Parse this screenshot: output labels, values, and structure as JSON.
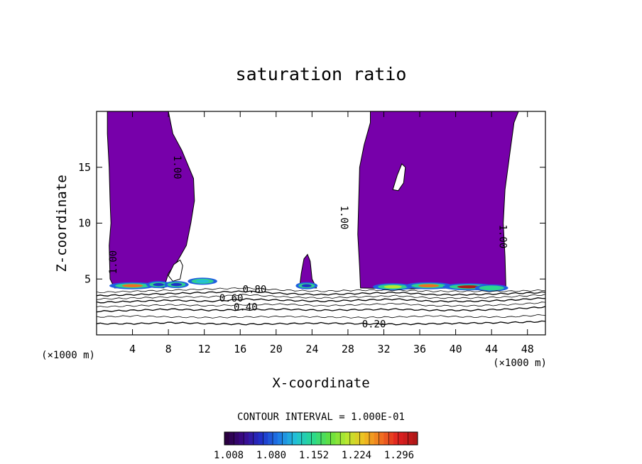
{
  "chart_data": {
    "type": "contour",
    "title": "saturation ratio",
    "xlabel": "X-coordinate",
    "ylabel": "Z-coordinate",
    "x_unit": "(×1000 m)",
    "z_unit": "(×1000 m)",
    "xlim": [
      0,
      50
    ],
    "ylim": [
      0,
      20
    ],
    "x_ticks": [
      4,
      8,
      12,
      16,
      20,
      24,
      28,
      32,
      36,
      40,
      44,
      48
    ],
    "y_ticks": [
      5,
      10,
      15
    ],
    "contour_labels": [
      {
        "text": "1.00",
        "x": 9.0,
        "z": 15.0
      },
      {
        "text": "1.00",
        "x": 1.8,
        "z": 6.5
      },
      {
        "text": "1.00",
        "x": 27.6,
        "z": 10.5
      },
      {
        "text": "1.00",
        "x": 45.3,
        "z": 8.8
      },
      {
        "text": "0.80",
        "x": 17.6,
        "z": 4.1
      },
      {
        "text": "0.60",
        "x": 15.0,
        "z": 3.3
      },
      {
        "text": "0.40",
        "x": 16.6,
        "z": 2.5
      },
      {
        "text": "0.20",
        "x": 30.9,
        "z": 1.0
      }
    ],
    "isolines": [
      {
        "value": 0.2,
        "z": [
          1.0,
          1.0,
          1.1,
          1.0,
          0.95,
          1.0,
          1.05,
          1.0,
          0.95,
          1.0,
          1.05,
          1.1,
          1.2
        ]
      },
      {
        "value": 0.3,
        "z": [
          1.6,
          1.7,
          1.6,
          1.55,
          1.6,
          1.65,
          1.6,
          1.55,
          1.6,
          1.7,
          1.6,
          1.6,
          1.8
        ]
      },
      {
        "value": 0.4,
        "z": [
          2.1,
          2.2,
          2.3,
          2.2,
          2.25,
          2.3,
          2.2,
          2.25,
          2.3,
          2.2,
          2.2,
          2.3,
          2.5
        ]
      },
      {
        "value": 0.5,
        "z": [
          2.5,
          2.6,
          2.7,
          2.6,
          2.7,
          2.75,
          2.6,
          2.7,
          2.8,
          2.6,
          2.6,
          2.7,
          2.9
        ]
      },
      {
        "value": 0.6,
        "z": [
          2.9,
          3.0,
          3.1,
          3.0,
          3.2,
          3.1,
          3.0,
          3.1,
          3.2,
          3.0,
          3.0,
          3.1,
          3.3
        ]
      },
      {
        "value": 0.7,
        "z": [
          3.2,
          3.3,
          3.4,
          3.4,
          3.6,
          3.4,
          3.3,
          3.4,
          3.5,
          3.3,
          3.3,
          3.4,
          3.6
        ]
      },
      {
        "value": 0.8,
        "z": [
          3.5,
          3.6,
          3.7,
          3.8,
          3.9,
          3.7,
          3.6,
          3.7,
          3.8,
          3.6,
          3.6,
          3.7,
          3.8
        ]
      },
      {
        "value": 0.9,
        "z": [
          3.8,
          3.9,
          4.0,
          4.1,
          4.2,
          4.0,
          3.9,
          4.0,
          4.0,
          3.9,
          3.9,
          3.9,
          4.0
        ]
      }
    ],
    "supersaturated_regions": [
      {
        "name": "left plume",
        "outline": [
          [
            1.2,
            20
          ],
          [
            8.0,
            20
          ],
          [
            8.5,
            18
          ],
          [
            9.5,
            16.5
          ],
          [
            10.8,
            14
          ],
          [
            10.9,
            12
          ],
          [
            10.5,
            10
          ],
          [
            10.0,
            8
          ],
          [
            9.0,
            6.6
          ],
          [
            8.0,
            5.5
          ],
          [
            7.5,
            4.2
          ],
          [
            5.0,
            4.3
          ],
          [
            2.0,
            4.2
          ],
          [
            1.5,
            5
          ],
          [
            1.4,
            8
          ],
          [
            1.6,
            10
          ],
          [
            1.5,
            12
          ],
          [
            1.4,
            15
          ],
          [
            1.2,
            18
          ]
        ]
      },
      {
        "name": "central cell",
        "outline": [
          [
            22.6,
            4.2
          ],
          [
            22.8,
            5.5
          ],
          [
            23.1,
            6.8
          ],
          [
            23.5,
            7.2
          ],
          [
            23.8,
            6.6
          ],
          [
            24.0,
            5.0
          ],
          [
            24.5,
            4.2
          ]
        ]
      },
      {
        "name": "right plume",
        "outline": [
          [
            30.5,
            20
          ],
          [
            47.0,
            20
          ],
          [
            46.5,
            19
          ],
          [
            46.0,
            16
          ],
          [
            45.5,
            13
          ],
          [
            45.3,
            10
          ],
          [
            45.5,
            7
          ],
          [
            45.6,
            4.2
          ],
          [
            40,
            4.2
          ],
          [
            34,
            4.1
          ],
          [
            29.4,
            4.2
          ],
          [
            29.3,
            6
          ],
          [
            29.1,
            9
          ],
          [
            29.2,
            12
          ],
          [
            29.3,
            15
          ],
          [
            29.8,
            17
          ],
          [
            30.5,
            19
          ]
        ]
      }
    ],
    "holes": [
      {
        "name": "left hole",
        "outline": [
          [
            8.0,
            5.3
          ],
          [
            8.6,
            6.3
          ],
          [
            9.3,
            6.7
          ],
          [
            9.6,
            6.2
          ],
          [
            9.3,
            5.0
          ],
          [
            8.5,
            4.8
          ]
        ]
      },
      {
        "name": "right hole",
        "outline": [
          [
            33.0,
            13.0
          ],
          [
            33.5,
            14.3
          ],
          [
            34.0,
            15.3
          ],
          [
            34.4,
            15.0
          ],
          [
            34.2,
            13.6
          ],
          [
            33.6,
            12.9
          ]
        ]
      }
    ],
    "hotspots": [
      {
        "x": 4.0,
        "z": 4.4,
        "intensity": 1.25
      },
      {
        "x": 6.9,
        "z": 4.5,
        "intensity": 1.08
      },
      {
        "x": 8.9,
        "z": 4.5,
        "intensity": 1.08
      },
      {
        "x": 11.8,
        "z": 4.8,
        "intensity": 1.12
      },
      {
        "x": 23.4,
        "z": 4.4,
        "intensity": 1.06
      },
      {
        "x": 33.0,
        "z": 4.3,
        "intensity": 1.2
      },
      {
        "x": 37.0,
        "z": 4.4,
        "intensity": 1.25
      },
      {
        "x": 41.5,
        "z": 4.3,
        "intensity": 1.3
      },
      {
        "x": 44.0,
        "z": 4.2,
        "intensity": 1.15
      }
    ],
    "contour_interval_text": "CONTOUR INTERVAL = 1.000E-01",
    "colorbar": {
      "ticks": [
        "1.008",
        "1.080",
        "1.152",
        "1.224",
        "1.296"
      ],
      "colors": [
        "#2a0040",
        "#3b0a8c",
        "#2030c8",
        "#1e78e6",
        "#22c0d8",
        "#28d890",
        "#60e040",
        "#b8e830",
        "#f0c020",
        "#f07020",
        "#e02020",
        "#b01818"
      ]
    },
    "colors": {
      "supersaturated": "#7700aa",
      "background": "#ffffff",
      "lines": "#000000"
    }
  }
}
